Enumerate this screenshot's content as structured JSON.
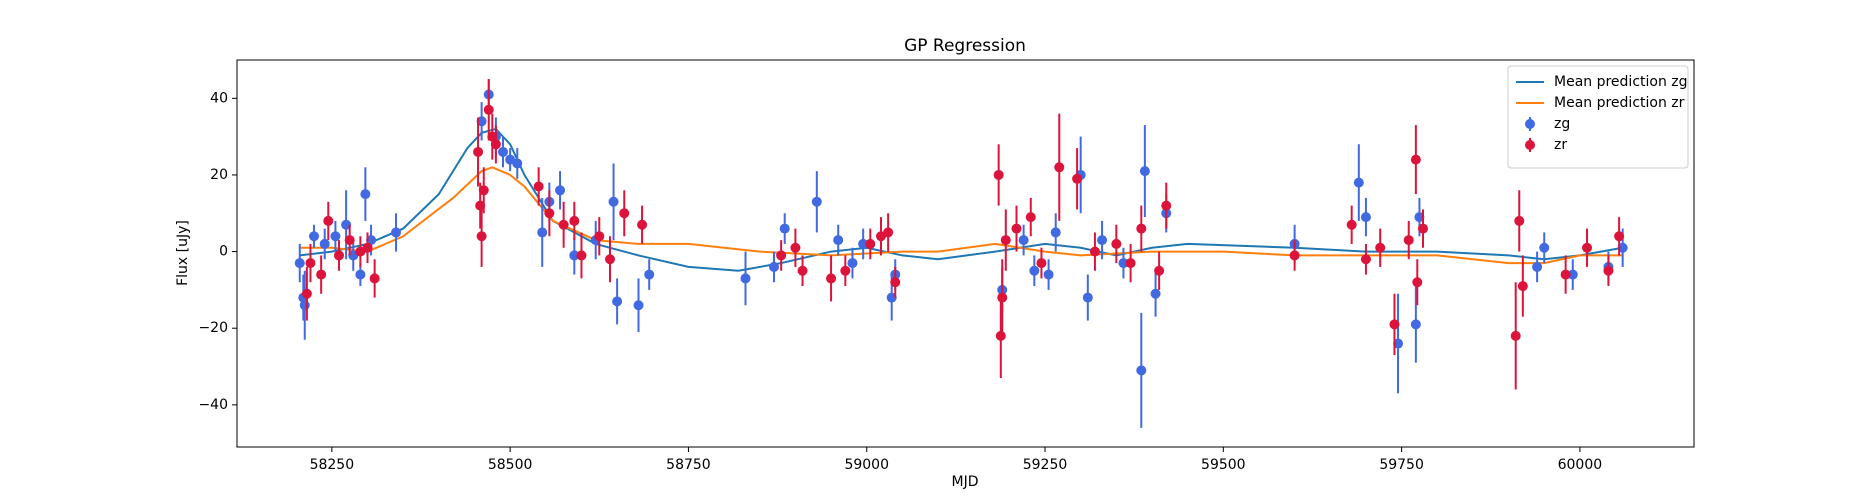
{
  "chart_data": {
    "type": "errorbar",
    "title": "GP Regression",
    "xlabel": "MJD",
    "ylabel": "Flux [uJy]",
    "xlim": [
      58117,
      60160
    ],
    "ylim": [
      -51,
      50
    ],
    "xticks": [
      58250,
      58500,
      58750,
      59000,
      59250,
      59500,
      59750,
      60000
    ],
    "yticks": [
      {
        "value": -40,
        "label": "−40"
      },
      {
        "value": -20,
        "label": "−20"
      },
      0,
      20,
      40
    ],
    "legend": "upper right",
    "series": [
      {
        "name": "Mean prediction zg",
        "kind": "line",
        "color": "#1f77b4",
        "x": [
          58205,
          58250,
          58300,
          58350,
          58400,
          58440,
          58460,
          58480,
          58500,
          58520,
          58560,
          58620,
          58680,
          58750,
          58820,
          58880,
          58950,
          59000,
          59050,
          59100,
          59180,
          59250,
          59300,
          59350,
          59400,
          59450,
          59600,
          59700,
          59800,
          59900,
          59950,
          60000,
          60060
        ],
        "values": [
          -1,
          0,
          2,
          6,
          15,
          27,
          31,
          32,
          28,
          20,
          8,
          2,
          -1,
          -4,
          -5,
          -3,
          0,
          1,
          -1,
          -2,
          0,
          2,
          1,
          -1,
          1,
          2,
          1,
          0,
          0,
          -1,
          -2,
          -1,
          1
        ]
      },
      {
        "name": "Mean prediction zr",
        "kind": "line",
        "color": "#ff7f0e",
        "x": [
          58205,
          58250,
          58300,
          58350,
          58420,
          58460,
          58475,
          58500,
          58520,
          58560,
          58620,
          58680,
          58750,
          58850,
          58950,
          59050,
          59100,
          59180,
          59250,
          59300,
          59400,
          59500,
          59600,
          59700,
          59800,
          59900,
          59950,
          60000,
          60060
        ],
        "values": [
          1,
          1,
          0,
          4,
          14,
          21,
          22,
          20,
          17,
          8,
          3,
          2,
          2,
          0,
          -1,
          0,
          0,
          2,
          0,
          -1,
          0,
          0,
          -1,
          -1,
          -1,
          -3,
          -3,
          -1,
          -1
        ]
      },
      {
        "name": "zg",
        "kind": "errorbar",
        "color": "#4169e1",
        "x": [
          58205,
          58210,
          58212,
          58225,
          58240,
          58255,
          58270,
          58280,
          58290,
          58297,
          58305,
          58340,
          58460,
          58470,
          58480,
          58490,
          58500,
          58510,
          58545,
          58555,
          58570,
          58590,
          58620,
          58645,
          58650,
          58680,
          58695,
          58830,
          58870,
          58885,
          58930,
          58960,
          58980,
          58995,
          59035,
          59040,
          59190,
          59220,
          59235,
          59255,
          59265,
          59300,
          59310,
          59330,
          59360,
          59385,
          59390,
          59405,
          59420,
          59600,
          59690,
          59700,
          59745,
          59770,
          59775,
          59940,
          59950,
          59990,
          60040,
          60060
        ],
        "values": [
          -3,
          -12,
          -14,
          4,
          2,
          4,
          7,
          -1,
          -6,
          15,
          3,
          5,
          34,
          41,
          30,
          26,
          24,
          23,
          5,
          13,
          16,
          -1,
          3,
          13,
          -13,
          -14,
          -6,
          -7,
          -4,
          6,
          13,
          3,
          -3,
          2,
          -12,
          -6,
          -10,
          3,
          -5,
          -6,
          5,
          20,
          -12,
          3,
          -3,
          -31,
          21,
          -11,
          10,
          2,
          18,
          9,
          -24,
          -19,
          9,
          -4,
          1,
          -6,
          -4,
          1
        ],
        "errors": [
          5,
          6,
          9,
          3,
          4,
          4,
          9,
          4,
          3,
          7,
          4,
          5,
          5,
          4,
          5,
          4,
          3,
          4,
          9,
          5,
          5,
          5,
          5,
          10,
          6,
          7,
          4,
          7,
          4,
          4,
          8,
          4,
          4,
          4,
          6,
          4,
          6,
          4,
          4,
          4,
          5,
          10,
          6,
          5,
          4,
          15,
          12,
          6,
          5,
          5,
          10,
          5,
          13,
          10,
          5,
          4,
          4,
          4,
          4,
          5
        ]
      },
      {
        "name": "zr",
        "kind": "errorbar",
        "color": "#dc143c",
        "x": [
          58215,
          58220,
          58235,
          58245,
          58260,
          58275,
          58290,
          58300,
          58310,
          58455,
          58458,
          58460,
          58463,
          58470,
          58475,
          58480,
          58540,
          58555,
          58575,
          58590,
          58600,
          58625,
          58640,
          58660,
          58685,
          58880,
          58900,
          58910,
          58950,
          58970,
          59005,
          59020,
          59030,
          59040,
          59185,
          59188,
          59190,
          59195,
          59210,
          59230,
          59245,
          59270,
          59295,
          59320,
          59350,
          59370,
          59385,
          59410,
          59420,
          59600,
          59680,
          59700,
          59720,
          59740,
          59760,
          59770,
          59772,
          59780,
          59910,
          59915,
          59920,
          59980,
          60010,
          60040,
          60055
        ],
        "values": [
          -11,
          -3,
          -6,
          8,
          -1,
          3,
          0,
          1,
          -7,
          26,
          12,
          4,
          16,
          37,
          30,
          28,
          17,
          10,
          7,
          8,
          -1,
          4,
          -2,
          10,
          7,
          -1,
          1,
          -5,
          -7,
          -5,
          2,
          4,
          5,
          -8,
          20,
          -22,
          -12,
          3,
          6,
          9,
          -3,
          22,
          19,
          0,
          2,
          -3,
          6,
          -5,
          12,
          -1,
          7,
          -2,
          1,
          -19,
          3,
          24,
          -8,
          6,
          -22,
          8,
          -9,
          -6,
          1,
          -5,
          4
        ],
        "errors": [
          7,
          5,
          5,
          5,
          4,
          4,
          4,
          4,
          5,
          9,
          6,
          8,
          6,
          8,
          6,
          5,
          5,
          6,
          6,
          5,
          6,
          5,
          6,
          6,
          5,
          4,
          5,
          4,
          6,
          4,
          4,
          5,
          5,
          4,
          8,
          11,
          10,
          8,
          6,
          5,
          4,
          14,
          8,
          5,
          5,
          5,
          6,
          5,
          6,
          4,
          5,
          4,
          5,
          8,
          5,
          9,
          6,
          5,
          14,
          8,
          8,
          5,
          5,
          4,
          5
        ]
      }
    ]
  }
}
